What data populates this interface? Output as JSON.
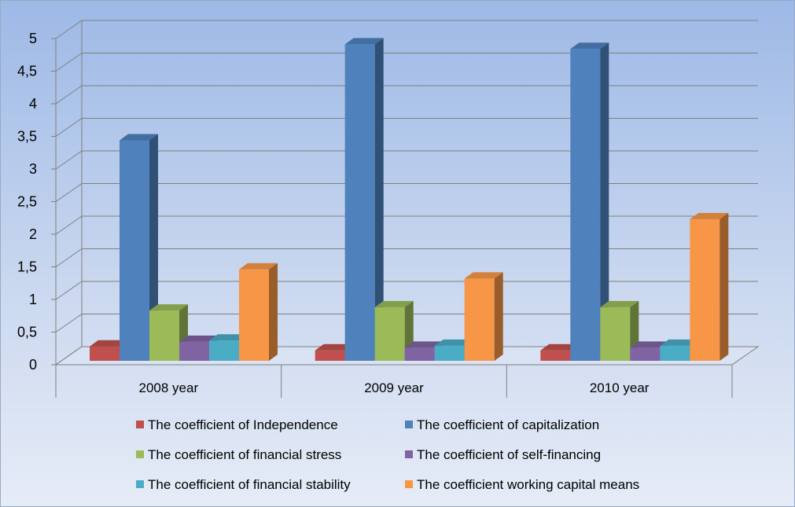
{
  "chart_data": {
    "type": "bar",
    "title": "",
    "xlabel": "",
    "ylabel": "",
    "categories": [
      "2008 year",
      "2009 year",
      "2010 year"
    ],
    "ylim": [
      0,
      5
    ],
    "yticks": [
      "0",
      "0,5",
      "1",
      "1,5",
      "2",
      "2,5",
      "3",
      "3,5",
      "4",
      "4,5",
      "5"
    ],
    "grid": true,
    "legend_position": "bottom",
    "series": [
      {
        "name": "The coefficient of Independence",
        "color": "#c0504d",
        "values": [
          0.22,
          0.16,
          0.16
        ]
      },
      {
        "name": "The coefficient of capitalization",
        "color": "#4f81bd",
        "values": [
          3.38,
          4.85,
          4.78
        ]
      },
      {
        "name": "The coefficient of financial stress",
        "color": "#9bbb59",
        "values": [
          0.77,
          0.82,
          0.82
        ]
      },
      {
        "name": "The coefficient of self-financing",
        "color": "#8064a2",
        "values": [
          0.29,
          0.2,
          0.2
        ]
      },
      {
        "name": "The coefficient of financial stability",
        "color": "#4bacc6",
        "values": [
          0.31,
          0.23,
          0.23
        ]
      },
      {
        "name": "The coefficient working capital means",
        "color": "#f79646",
        "values": [
          1.4,
          1.26,
          2.17
        ]
      }
    ]
  }
}
